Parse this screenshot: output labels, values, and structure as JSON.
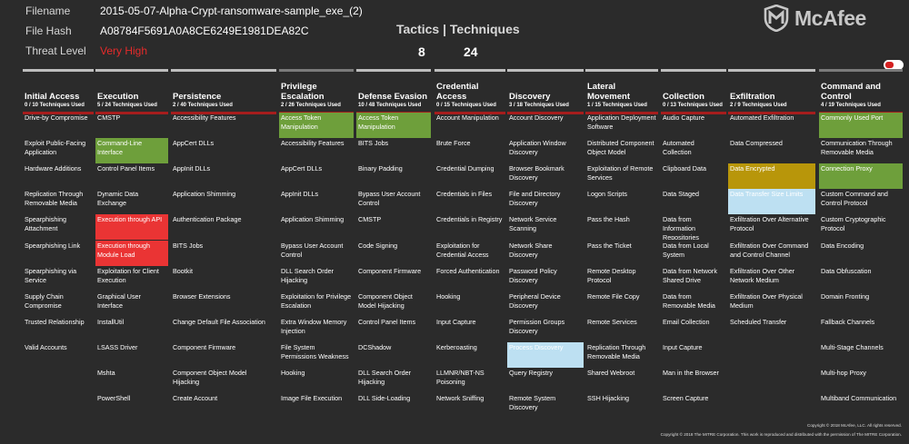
{
  "info": {
    "filename_label": "Filename",
    "filename_value": "2015-05-07-Alpha-Crypt-ransomware-sample_exe_(2)",
    "hash_label": "File Hash",
    "hash_value": "A08784F5691A0A8CE6249E1981DEA82C",
    "threat_label": "Threat Level",
    "threat_value": "Very High"
  },
  "summary": {
    "title": "Tactics | Techniques",
    "tactics": "8",
    "techniques": "24"
  },
  "brand": {
    "name": "McAfee",
    "color": "#c7c7c7"
  },
  "colors": {
    "green": "#6e9f3b",
    "red": "#ea3434",
    "gold": "#b8960a",
    "light_blue": "#bde0f2",
    "accent_bar": "#a61d1d"
  },
  "tactics": [
    {
      "name": "Initial Access",
      "count": "0 / 10 Techniques Used",
      "cells": [
        {
          "text": "Drive-by Compromise",
          "hl": ""
        },
        {
          "text": "Exploit Public-Facing Application",
          "hl": ""
        },
        {
          "text": "Hardware Additions",
          "hl": ""
        },
        {
          "text": "Replication Through Removable Media",
          "hl": ""
        },
        {
          "text": "Spearphishing Attachment",
          "hl": ""
        },
        {
          "text": "Spearphishing Link",
          "hl": ""
        },
        {
          "text": "Spearphishing via Service",
          "hl": ""
        },
        {
          "text": "Supply Chain Compromise",
          "hl": ""
        },
        {
          "text": "Trusted Relationship",
          "hl": ""
        },
        {
          "text": "Valid Accounts",
          "hl": ""
        }
      ]
    },
    {
      "name": "Execution",
      "count": "5 / 24 Techniques Used",
      "cells": [
        {
          "text": "CMSTP",
          "hl": ""
        },
        {
          "text": "Command-Line Interface",
          "hl": "green"
        },
        {
          "text": "Control Panel Items",
          "hl": ""
        },
        {
          "text": "Dynamic Data Exchange",
          "hl": ""
        },
        {
          "text": "Execution through API",
          "hl": "red"
        },
        {
          "text": "Execution through Module Load",
          "hl": "red"
        },
        {
          "text": "Exploitation for Client Execution",
          "hl": ""
        },
        {
          "text": "Graphical User Interface",
          "hl": ""
        },
        {
          "text": "InstallUtil",
          "hl": ""
        },
        {
          "text": "LSASS Driver",
          "hl": ""
        },
        {
          "text": "Mshta",
          "hl": ""
        },
        {
          "text": "PowerShell",
          "hl": ""
        }
      ]
    },
    {
      "name": "Persistence",
      "count": "2 / 40 Techniques Used",
      "cells": [
        {
          "text": "Accessibility Features",
          "hl": ""
        },
        {
          "text": "AppCert DLLs",
          "hl": ""
        },
        {
          "text": "AppInit DLLs",
          "hl": ""
        },
        {
          "text": "Application Shimming",
          "hl": ""
        },
        {
          "text": "Authentication Package",
          "hl": ""
        },
        {
          "text": "BITS Jobs",
          "hl": ""
        },
        {
          "text": "Bootkit",
          "hl": ""
        },
        {
          "text": "Browser Extensions",
          "hl": ""
        },
        {
          "text": "Change Default File Association",
          "hl": ""
        },
        {
          "text": "Component Firmware",
          "hl": ""
        },
        {
          "text": "Component Object Model Hijacking",
          "hl": ""
        },
        {
          "text": "Create Account",
          "hl": ""
        }
      ]
    },
    {
      "name": "Privilege Escalation",
      "count": "2 / 26 Techniques Used",
      "cells": [
        {
          "text": "Access Token Manipulation",
          "hl": "green"
        },
        {
          "text": "Accessibility Features",
          "hl": ""
        },
        {
          "text": "AppCert DLLs",
          "hl": ""
        },
        {
          "text": "AppInit DLLs",
          "hl": ""
        },
        {
          "text": "Application Shimming",
          "hl": ""
        },
        {
          "text": "Bypass User Account Control",
          "hl": ""
        },
        {
          "text": "DLL Search Order Hijacking",
          "hl": ""
        },
        {
          "text": "Exploitation for Privilege Escalation",
          "hl": ""
        },
        {
          "text": "Extra Window Memory Injection",
          "hl": ""
        },
        {
          "text": "File System Permissions Weakness",
          "hl": ""
        },
        {
          "text": "Hooking",
          "hl": ""
        },
        {
          "text": "Image File Execution",
          "hl": ""
        }
      ]
    },
    {
      "name": "Defense Evasion",
      "count": "10 / 48 Techniques Used",
      "cells": [
        {
          "text": "Access Token Manipulation",
          "hl": "green"
        },
        {
          "text": "BITS Jobs",
          "hl": ""
        },
        {
          "text": "Binary Padding",
          "hl": ""
        },
        {
          "text": "Bypass User Account Control",
          "hl": ""
        },
        {
          "text": "CMSTP",
          "hl": ""
        },
        {
          "text": "Code Signing",
          "hl": ""
        },
        {
          "text": "Component Firmware",
          "hl": ""
        },
        {
          "text": "Component Object Model Hijacking",
          "hl": ""
        },
        {
          "text": "Control Panel Items",
          "hl": ""
        },
        {
          "text": "DCShadow",
          "hl": ""
        },
        {
          "text": "DLL Search Order Hijacking",
          "hl": ""
        },
        {
          "text": "DLL Side-Loading",
          "hl": ""
        }
      ]
    },
    {
      "name": "Credential Access",
      "count": "0 / 15 Techniques Used",
      "cells": [
        {
          "text": "Account Manipulation",
          "hl": ""
        },
        {
          "text": "Brute Force",
          "hl": ""
        },
        {
          "text": "Credential Dumping",
          "hl": ""
        },
        {
          "text": "Credentials in Files",
          "hl": ""
        },
        {
          "text": "Credentials in Registry",
          "hl": ""
        },
        {
          "text": "Exploitation for Credential Access",
          "hl": ""
        },
        {
          "text": "Forced Authentication",
          "hl": ""
        },
        {
          "text": "Hooking",
          "hl": ""
        },
        {
          "text": "Input Capture",
          "hl": ""
        },
        {
          "text": "Kerberoasting",
          "hl": ""
        },
        {
          "text": "LLMNR/NBT-NS Poisoning",
          "hl": ""
        },
        {
          "text": "Network Sniffing",
          "hl": ""
        }
      ]
    },
    {
      "name": "Discovery",
      "count": "3 / 18 Techniques Used",
      "cells": [
        {
          "text": "Account Discovery",
          "hl": ""
        },
        {
          "text": "Application Window Discovery",
          "hl": ""
        },
        {
          "text": "Browser Bookmark Discovery",
          "hl": ""
        },
        {
          "text": "File and Directory Discovery",
          "hl": ""
        },
        {
          "text": "Network Service Scanning",
          "hl": ""
        },
        {
          "text": "Network Share Discovery",
          "hl": ""
        },
        {
          "text": "Password Policy Discovery",
          "hl": ""
        },
        {
          "text": "Peripheral Device Discovery",
          "hl": ""
        },
        {
          "text": "Permission Groups Discovery",
          "hl": ""
        },
        {
          "text": "Process Discovery",
          "hl": "lblue"
        },
        {
          "text": "Query Registry",
          "hl": ""
        },
        {
          "text": "Remote System Discovery",
          "hl": ""
        }
      ]
    },
    {
      "name": "Lateral Movement",
      "count": "1 / 15 Techniques Used",
      "cells": [
        {
          "text": "Application Deployment Software",
          "hl": ""
        },
        {
          "text": "Distributed Component Object Model",
          "hl": ""
        },
        {
          "text": "Exploitation of Remote Services",
          "hl": ""
        },
        {
          "text": "Logon Scripts",
          "hl": ""
        },
        {
          "text": "Pass the Hash",
          "hl": ""
        },
        {
          "text": "Pass the Ticket",
          "hl": ""
        },
        {
          "text": "Remote Desktop Protocol",
          "hl": ""
        },
        {
          "text": "Remote File Copy",
          "hl": ""
        },
        {
          "text": "Remote Services",
          "hl": ""
        },
        {
          "text": "Replication Through Removable Media",
          "hl": ""
        },
        {
          "text": "Shared Webroot",
          "hl": ""
        },
        {
          "text": "SSH Hijacking",
          "hl": ""
        }
      ]
    },
    {
      "name": "Collection",
      "count": "0 / 13 Techniques Used",
      "cells": [
        {
          "text": "Audio Capture",
          "hl": ""
        },
        {
          "text": "Automated Collection",
          "hl": ""
        },
        {
          "text": "Clipboard Data",
          "hl": ""
        },
        {
          "text": "Data Staged",
          "hl": ""
        },
        {
          "text": "Data from Information Repositories",
          "hl": ""
        },
        {
          "text": "Data from Local System",
          "hl": ""
        },
        {
          "text": "Data from Network Shared Drive",
          "hl": ""
        },
        {
          "text": "Data from Removable Media",
          "hl": ""
        },
        {
          "text": "Email Collection",
          "hl": ""
        },
        {
          "text": "Input Capture",
          "hl": ""
        },
        {
          "text": "Man in the Browser",
          "hl": ""
        },
        {
          "text": "Screen Capture",
          "hl": ""
        }
      ]
    },
    {
      "name": "Exfiltration",
      "count": "2 / 9 Techniques Used",
      "cells": [
        {
          "text": "Automated Exfiltration",
          "hl": ""
        },
        {
          "text": "Data Compressed",
          "hl": ""
        },
        {
          "text": "Data Encrypted",
          "hl": "gold"
        },
        {
          "text": "Data Transfer Size Limits",
          "hl": "lblue"
        },
        {
          "text": "Exfiltration Over Alternative Protocol",
          "hl": ""
        },
        {
          "text": "Exfiltration Over Command and Control Channel",
          "hl": ""
        },
        {
          "text": "Exfiltration Over Other Network Medium",
          "hl": ""
        },
        {
          "text": "Exfiltration Over Physical Medium",
          "hl": ""
        },
        {
          "text": "Scheduled Transfer",
          "hl": ""
        }
      ]
    },
    {
      "name": "Command and Control",
      "count": "4 / 19 Techniques Used",
      "cells": [
        {
          "text": "Commonly Used Port",
          "hl": "green"
        },
        {
          "text": "Communication Through Removable Media",
          "hl": ""
        },
        {
          "text": "Connection Proxy",
          "hl": "green"
        },
        {
          "text": "Custom Command and Control Protocol",
          "hl": ""
        },
        {
          "text": "Custom Cryptographic Protocol",
          "hl": ""
        },
        {
          "text": "Data Encoding",
          "hl": ""
        },
        {
          "text": "Data Obfuscation",
          "hl": ""
        },
        {
          "text": "Domain Fronting",
          "hl": ""
        },
        {
          "text": "Fallback Channels",
          "hl": ""
        },
        {
          "text": "Multi-Stage Channels",
          "hl": ""
        },
        {
          "text": "Multi-hop Proxy",
          "hl": ""
        },
        {
          "text": "Multiband Communication",
          "hl": ""
        }
      ]
    }
  ],
  "footer": {
    "copyright_mcafee": "Copyright © 2018 McAfee, LLC. All rights reserved.",
    "copyright_mitre": "Copyright © 2018 The MITRE Corporation. This work is reproduced and distributed with the permission of The MITRE Corporation."
  }
}
